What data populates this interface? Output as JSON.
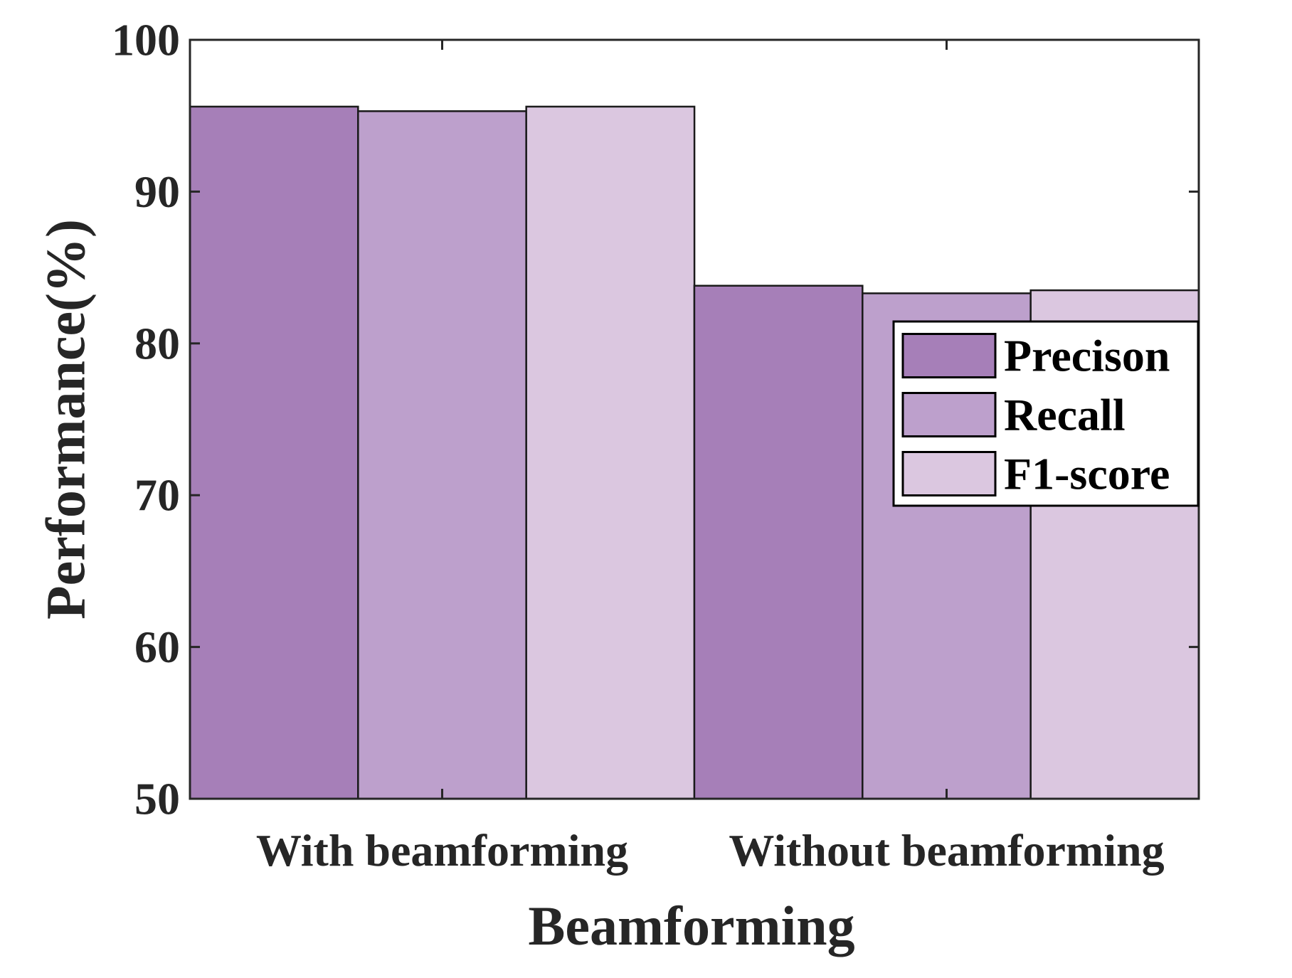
{
  "chart_data": {
    "type": "bar",
    "title": "",
    "xlabel": "Beamforming",
    "ylabel": "Performance(%)",
    "ylim": [
      50,
      100
    ],
    "yticks": [
      50,
      60,
      70,
      80,
      90,
      100
    ],
    "ytick_labels": [
      "50",
      "60",
      "70",
      "80",
      "90",
      "100"
    ],
    "categories": [
      "With beamforming",
      "Without beamforming"
    ],
    "series": [
      {
        "name": "Precison",
        "color": "#a67fb8",
        "values": [
          95.6,
          83.8
        ]
      },
      {
        "name": "Recall",
        "color": "#bda0cc",
        "values": [
          95.3,
          83.3
        ]
      },
      {
        "name": "F1-score",
        "color": "#dbc7e0",
        "values": [
          95.6,
          83.5
        ]
      }
    ],
    "grid": false,
    "legend_position": "right"
  }
}
